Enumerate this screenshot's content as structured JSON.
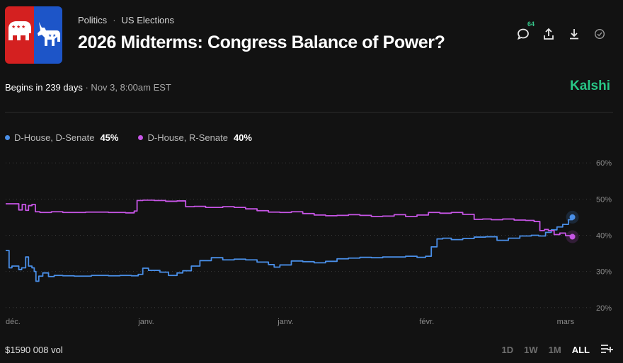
{
  "header": {
    "category": "Politics",
    "separator": "·",
    "subcategory": "US Elections",
    "title": "2026 Midterms: Congress Balance of Power?",
    "comments_count": "64"
  },
  "icons": [
    "republican-elephant-icon",
    "democrat-donkey-icon",
    "comment-icon",
    "share-icon",
    "download-icon",
    "check-circle-icon",
    "settings-icon"
  ],
  "colors": {
    "accent_green": "#28c686",
    "blue_series": "#4a8fe8",
    "purple_series": "#c755e6",
    "background": "#121212"
  },
  "status": {
    "begins": "Begins in 239 days",
    "date": "· Nov 3, 8:00am EST"
  },
  "brand": "Kalshi",
  "legend": [
    {
      "label": "D-House, D-Senate",
      "value": "45%",
      "color": "#4a8fe8"
    },
    {
      "label": "D-House, R-Senate",
      "value": "40%",
      "color": "#c755e6"
    }
  ],
  "footer": {
    "volume": "$1590 008 vol",
    "ranges": [
      "1D",
      "1W",
      "1M",
      "ALL"
    ],
    "active_range": "ALL"
  },
  "chart_data": {
    "type": "line",
    "y_ticks": [
      "60%",
      "50%",
      "40%",
      "30%",
      "20%"
    ],
    "ylim": [
      18,
      62
    ],
    "x_range": [
      0,
      100
    ],
    "x_tick_labels": [
      {
        "x": 0,
        "label": "déc."
      },
      {
        "x": 24.6,
        "label": "janv."
      },
      {
        "x": 49.0,
        "label": "janv."
      },
      {
        "x": 73.7,
        "label": "févr."
      },
      {
        "x": 98.0,
        "label": "mars"
      }
    ],
    "grid": true,
    "series": [
      {
        "name": "D-House, D-Senate",
        "color": "#4a8fe8",
        "x": [
          0,
          0.6,
          1.1,
          2.3,
          2.8,
          3.5,
          4.0,
          4.6,
          5.0,
          5.3,
          5.8,
          6.5,
          7.5,
          8.5,
          10,
          12,
          15,
          18,
          20,
          22,
          23.2,
          24,
          25,
          27,
          28.5,
          30,
          31,
          32.5,
          34,
          36,
          38,
          40,
          42,
          44,
          46,
          47,
          48,
          50,
          52,
          54,
          56,
          58,
          60,
          62,
          64,
          66,
          68,
          70,
          72,
          73.5,
          74.5,
          75.5,
          76.5,
          78,
          80,
          82,
          84,
          86,
          88,
          90,
          92,
          93.3,
          94.5,
          95.5,
          96.5,
          97.5,
          98.5,
          99.2
        ],
        "y": [
          35.8,
          31,
          31.5,
          30.5,
          31,
          34,
          31.5,
          31,
          30,
          27.3,
          28.7,
          29.6,
          28.6,
          28.9,
          28.8,
          28.7,
          28.9,
          28.8,
          28.9,
          28.8,
          29.2,
          30.9,
          30.3,
          29.8,
          28.9,
          29.6,
          30.2,
          31.5,
          33.0,
          33.8,
          33.2,
          33.4,
          33.2,
          32.6,
          31.9,
          31.2,
          31.8,
          32.9,
          32.7,
          32.4,
          32.8,
          33.5,
          33.7,
          33.9,
          33.8,
          34.0,
          34.0,
          34.2,
          33.9,
          34.2,
          36.8,
          39.0,
          39.2,
          38.8,
          39.1,
          39.5,
          39.6,
          38.6,
          39.2,
          39.8,
          40.0,
          39.8,
          40.8,
          41.5,
          42.3,
          43.0,
          44.3,
          45.0
        ]
      },
      {
        "name": "D-House, R-Senate",
        "color": "#c755e6",
        "x": [
          0,
          1.5,
          2.3,
          2.9,
          3.5,
          4.0,
          4.6,
          5.2,
          6.0,
          8,
          10,
          14,
          18,
          21,
          22.5,
          23,
          24,
          26,
          28,
          30,
          31.5,
          33,
          35,
          38,
          40,
          42,
          44,
          46,
          48,
          50,
          52,
          54,
          56,
          58,
          60,
          62,
          64,
          66,
          68,
          70,
          72,
          74,
          76,
          78,
          80,
          82,
          83.5,
          85,
          87,
          89,
          91,
          92.5,
          93.5,
          94.3,
          95,
          96,
          97,
          98,
          99.2
        ],
        "y": [
          48.7,
          48.7,
          47.0,
          48.5,
          46.9,
          48.2,
          48.5,
          46.5,
          46.3,
          46.5,
          46.3,
          46.4,
          46.3,
          46.2,
          46.7,
          49.6,
          49.7,
          49.6,
          49.4,
          49.5,
          47.9,
          48.0,
          47.7,
          47.9,
          47.7,
          47.3,
          46.8,
          46.4,
          46.3,
          46.5,
          46.0,
          45.6,
          45.4,
          45.5,
          45.7,
          45.5,
          45.2,
          45.3,
          45.7,
          45.2,
          45.6,
          46.3,
          46.1,
          46.3,
          45.8,
          44.4,
          44.5,
          44.3,
          44.5,
          44.2,
          44.1,
          43.8,
          41.3,
          41.6,
          41.3,
          40.2,
          40.6,
          39.9,
          39.6
        ]
      }
    ]
  }
}
